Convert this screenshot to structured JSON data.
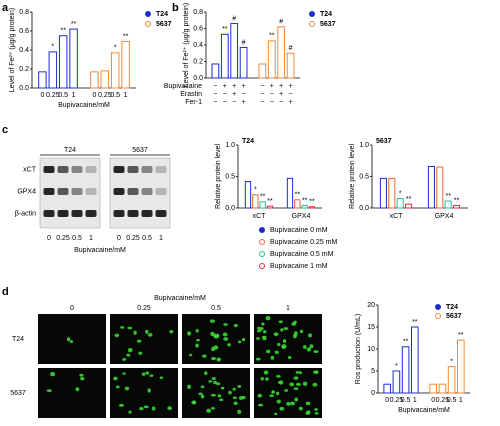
{
  "panel_labels": [
    "a",
    "b",
    "c",
    "d"
  ],
  "chart_data": [
    {
      "type": "bar",
      "layout": "blocks",
      "ylabel": "Level of Fe²⁺ (μg/g protein)",
      "xlabel": "Bupivacaine/mM",
      "categories": [
        "0",
        "0.25",
        "0.5",
        "1"
      ],
      "series": [
        {
          "name": "T24",
          "color": "#1a2fcf",
          "values": [
            0.17,
            0.38,
            0.55,
            0.62
          ],
          "annotations": [
            null,
            "*",
            "**",
            "**"
          ]
        },
        {
          "name": "5637",
          "color": "#f08a3c",
          "values": [
            0.17,
            0.18,
            0.37,
            0.49
          ],
          "annotations": [
            null,
            null,
            "*",
            "**"
          ]
        }
      ],
      "ylim": [
        0,
        0.8
      ],
      "yticks": [
        {
          "value": 0,
          "label": "0.0"
        },
        0.2,
        0.4,
        0.6,
        0.8
      ],
      "legend": "right"
    },
    {
      "type": "bar",
      "layout": "blocks",
      "ylabel": "Level of Fe²⁺ (μg/g protein)",
      "conditions": [
        {
          "name": "Bupivacaine",
          "signs": [
            "−",
            "+",
            "+",
            "+"
          ]
        },
        {
          "name": "Erastin",
          "signs": [
            "−",
            "−",
            "+",
            "−"
          ]
        },
        {
          "name": "Fer-1",
          "signs": [
            "−",
            "−",
            "−",
            "+"
          ]
        }
      ],
      "series": [
        {
          "name": "T24",
          "color": "#1a2fcf",
          "values": [
            0.17,
            0.53,
            0.66,
            0.37
          ],
          "annotations": [
            null,
            "**",
            "#",
            "#"
          ]
        },
        {
          "name": "5637",
          "color": "#f08a3c",
          "values": [
            0.17,
            0.45,
            0.62,
            0.3
          ],
          "annotations": [
            null,
            "**",
            "#",
            "#"
          ]
        }
      ],
      "ylim": [
        0,
        0.8
      ],
      "yticks": [
        {
          "value": 0,
          "label": "0.0"
        },
        0.2,
        0.4,
        0.6,
        0.8
      ],
      "legend": "right"
    },
    {
      "type": "bar",
      "layout": "grouped",
      "subtitle": "T24",
      "ylabel": "Relative protein level",
      "categories": [
        "xCT",
        "GPX4"
      ],
      "series": [
        {
          "name": "Bupivacaine 0 mM",
          "color": "#1a2fcf",
          "values": [
            0.42,
            0.47
          ],
          "annotations": [
            null,
            null
          ]
        },
        {
          "name": "Bupivacaine 0.25 mM",
          "color": "#f0613c",
          "values": [
            0.21,
            0.13
          ],
          "annotations": [
            "*",
            "**"
          ]
        },
        {
          "name": "Bupivacaine 0.5 mM",
          "color": "#22c39a",
          "values": [
            0.1,
            0.04
          ],
          "annotations": [
            "**",
            "**"
          ]
        },
        {
          "name": "Bupivacaine 1 mM",
          "color": "#e8283c",
          "values": [
            0.03,
            0.02
          ],
          "annotations": [
            "**",
            "**"
          ]
        }
      ],
      "ylim": [
        0,
        1.0
      ],
      "yticks": [
        {
          "value": 0,
          "label": "0.0"
        },
        0.5,
        {
          "value": 1,
          "label": "1.0"
        }
      ],
      "legend": "below"
    },
    {
      "type": "bar",
      "layout": "grouped",
      "subtitle": "5637",
      "ylabel": "Relative protein level",
      "categories": [
        "xCT",
        "GPX4"
      ],
      "series": [
        {
          "color": "#1a2fcf",
          "values": [
            0.47,
            0.66
          ],
          "annotations": [
            null,
            null
          ]
        },
        {
          "color": "#f0613c",
          "values": [
            0.47,
            0.65
          ],
          "annotations": [
            null,
            null
          ]
        },
        {
          "color": "#22c39a",
          "values": [
            0.15,
            0.11
          ],
          "annotations": [
            "*",
            "**"
          ]
        },
        {
          "color": "#e8283c",
          "values": [
            0.06,
            0.04
          ],
          "annotations": [
            "**",
            "**"
          ]
        }
      ],
      "ylim": [
        0,
        1.0
      ],
      "yticks": [
        {
          "value": 0,
          "label": "0.0"
        },
        0.5,
        {
          "value": 1,
          "label": "1.0"
        }
      ]
    },
    {
      "type": "bar",
      "layout": "blocks",
      "ylabel": "Ros production (U/mL)",
      "xlabel": "Bupivacaine/mM",
      "categories": [
        "0",
        "0.25",
        "0.5",
        "1"
      ],
      "series": [
        {
          "name": "T24",
          "color": "#1a2fcf",
          "values": [
            2,
            5,
            10.5,
            15
          ],
          "annotations": [
            null,
            "*",
            "**",
            "**"
          ]
        },
        {
          "name": "5637",
          "color": "#f08a3c",
          "values": [
            2,
            2,
            6,
            12
          ],
          "annotations": [
            null,
            null,
            "*",
            "**"
          ]
        }
      ],
      "ylim": [
        0,
        20
      ],
      "yticks": [
        0,
        5,
        10,
        15,
        20
      ],
      "legend": "upper right"
    }
  ],
  "blot": {
    "groups": [
      "T24",
      "5637"
    ],
    "rows": [
      "xCT",
      "GPX4",
      "β-actin"
    ],
    "lanes": [
      "0",
      "0.25",
      "0.5",
      "1"
    ],
    "xlabel": "Bupivacaine/mM"
  },
  "microscopy": {
    "title": "Bupivacaine/mM",
    "columns": [
      "0",
      "0.25",
      "0.5",
      "1"
    ],
    "rows": [
      "T24",
      "5637"
    ]
  }
}
